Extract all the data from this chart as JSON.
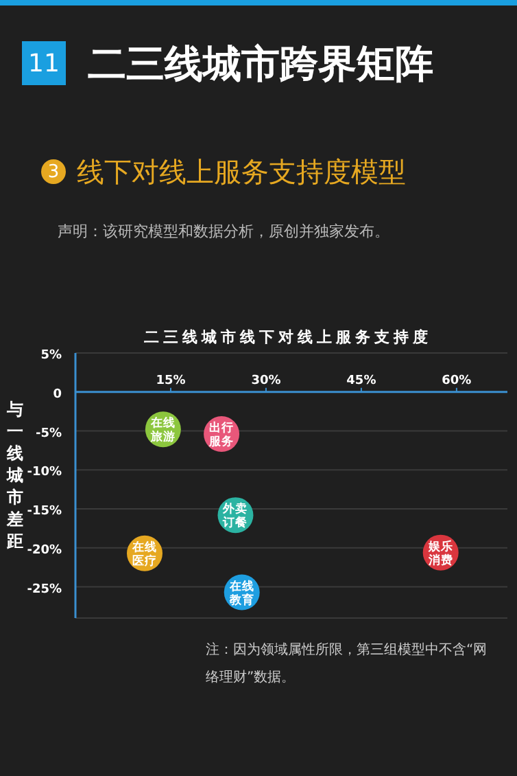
{
  "chart_data": {
    "type": "scatter",
    "title": "二三线城市跨界矩阵",
    "subtitle": "线下对线上服务支持度模型",
    "xlabel": "二三线城市线下对线上服务支持度",
    "ylabel": "与一线城市差距",
    "annotations": [
      "11",
      "3",
      "声明：该研究模型和数据分析，原创并独家发布。",
      "注：因为领域属性所限，第三组模型中不含“网络理财”数据。"
    ],
    "xlim": [
      0,
      68
    ],
    "xticks": [
      {
        "value": 15,
        "label": "15%"
      },
      {
        "value": 30,
        "label": "30%"
      },
      {
        "value": 45,
        "label": "45%"
      },
      {
        "value": 60,
        "label": "60%"
      }
    ],
    "ylim": [
      -29,
      5
    ],
    "yticks": [
      {
        "value": 5,
        "label": "5%"
      },
      0,
      {
        "value": -5,
        "label": "-5%"
      },
      {
        "value": -10,
        "label": "-10%"
      },
      {
        "value": -15,
        "label": "-15%"
      },
      {
        "value": -20,
        "label": "-20%"
      },
      {
        "value": -25,
        "label": "-25%"
      }
    ],
    "grid": "y",
    "legend": false,
    "marker": "circle",
    "series": [
      {
        "name": "在线旅游",
        "color": "#8cc63e",
        "x": [
          13.8
        ],
        "values": [
          -4.8
        ]
      },
      {
        "name": "出行服务",
        "color": "#e8577a",
        "x": [
          23
        ],
        "values": [
          -5.4
        ]
      },
      {
        "name": "外卖订餐",
        "color": "#2bb3a2",
        "x": [
          25.2
        ],
        "values": [
          -15.8
        ]
      },
      {
        "name": "在线医疗",
        "color": "#e6a821",
        "x": [
          10.9
        ],
        "values": [
          -20.7
        ]
      },
      {
        "name": "在线教育",
        "color": "#1e9ee0",
        "x": [
          26.2
        ],
        "values": [
          -25.7
        ]
      },
      {
        "name": "娱乐消费",
        "color": "#d9363e",
        "x": [
          57.5
        ],
        "values": [
          -20.6
        ]
      }
    ]
  }
}
